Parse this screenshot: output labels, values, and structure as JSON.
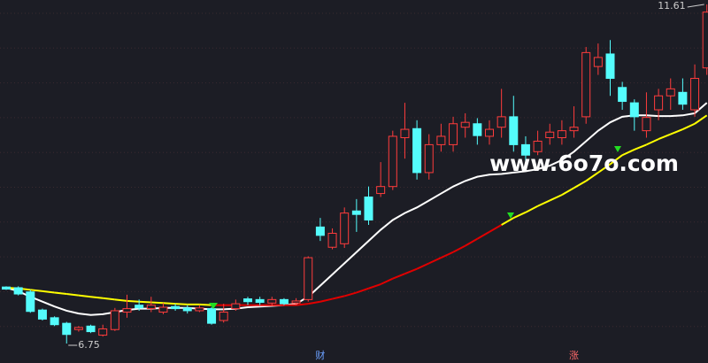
{
  "chart_data": {
    "type": "candlestick",
    "open": [
      7.56,
      7.55,
      7.49,
      7.23,
      7.12,
      7.04,
      6.95,
      7.0,
      6.87,
      6.95,
      7.2,
      7.3,
      7.25,
      7.2,
      7.28,
      7.26,
      7.22,
      7.25,
      7.08,
      7.25,
      7.39,
      7.38,
      7.33,
      7.38,
      7.33,
      7.38,
      8.42,
      8.13,
      8.18,
      8.65,
      8.85,
      8.9,
      9.0,
      9.7,
      9.83,
      9.2,
      9.6,
      9.6,
      9.85,
      9.9,
      9.72,
      9.85,
      10.0,
      9.6,
      9.5,
      9.7,
      9.7,
      9.8,
      10.0,
      10.72,
      10.9,
      10.42,
      10.2,
      9.8,
      10.1,
      10.3,
      10.35,
      10.1,
      10.7
    ],
    "high": [
      7.57,
      7.57,
      7.52,
      7.25,
      7.14,
      7.06,
      7.0,
      7.02,
      7.02,
      7.26,
      7.45,
      7.38,
      7.42,
      7.33,
      7.32,
      7.3,
      7.3,
      7.27,
      7.32,
      7.38,
      7.42,
      7.42,
      7.42,
      7.4,
      7.4,
      8.0,
      8.55,
      8.4,
      8.7,
      8.82,
      9.0,
      9.35,
      9.8,
      10.2,
      9.95,
      9.75,
      9.9,
      10.0,
      10.05,
      9.98,
      9.95,
      10.4,
      10.3,
      9.72,
      9.8,
      9.9,
      9.95,
      10.15,
      11.0,
      11.05,
      11.1,
      10.5,
      10.25,
      10.35,
      10.4,
      10.55,
      10.55,
      10.75,
      11.61
    ],
    "low": [
      7.52,
      7.44,
      7.19,
      7.08,
      7.0,
      6.75,
      6.92,
      6.9,
      6.85,
      6.93,
      7.12,
      7.22,
      7.2,
      7.17,
      7.22,
      7.18,
      7.2,
      7.02,
      7.05,
      7.22,
      7.3,
      7.3,
      7.3,
      7.3,
      7.3,
      7.35,
      8.22,
      8.1,
      8.12,
      8.35,
      8.45,
      8.85,
      8.95,
      9.4,
      9.1,
      9.1,
      9.5,
      9.5,
      9.7,
      9.6,
      9.6,
      9.7,
      9.5,
      9.35,
      9.45,
      9.6,
      9.6,
      9.7,
      9.9,
      10.6,
      10.3,
      10.1,
      9.8,
      9.7,
      9.95,
      10.1,
      10.1,
      10.0,
      10.6
    ],
    "close": [
      7.53,
      7.46,
      7.21,
      7.1,
      7.02,
      6.88,
      6.98,
      6.92,
      6.96,
      7.22,
      7.25,
      7.26,
      7.3,
      7.27,
      7.25,
      7.22,
      7.26,
      7.04,
      7.2,
      7.32,
      7.35,
      7.34,
      7.38,
      7.32,
      7.36,
      7.98,
      8.3,
      8.33,
      8.62,
      8.6,
      8.52,
      9.0,
      9.72,
      9.82,
      9.2,
      9.6,
      9.72,
      9.9,
      9.92,
      9.73,
      9.82,
      10.0,
      9.6,
      9.45,
      9.65,
      9.78,
      9.8,
      9.85,
      10.92,
      10.85,
      10.55,
      10.22,
      10.0,
      9.99,
      10.3,
      10.4,
      10.18,
      10.55,
      11.5
    ],
    "up_color": "#ff3c3c",
    "down_color": "#54fcfc",
    "ma_lines": [
      {
        "color": "#ffffff",
        "values": [
          7.55,
          7.5,
          7.42,
          7.35,
          7.28,
          7.22,
          7.18,
          7.16,
          7.17,
          7.2,
          7.23,
          7.25,
          7.25,
          7.26,
          7.26,
          7.26,
          7.25,
          7.24,
          7.24,
          7.25,
          7.27,
          7.28,
          7.29,
          7.3,
          7.32,
          7.42,
          7.58,
          7.74,
          7.9,
          8.06,
          8.22,
          8.38,
          8.52,
          8.62,
          8.7,
          8.8,
          8.9,
          9.0,
          9.08,
          9.14,
          9.17,
          9.18,
          9.2,
          9.22,
          9.25,
          9.3,
          9.38,
          9.5,
          9.65,
          9.8,
          9.92,
          10.0,
          10.02,
          10.02,
          10.01,
          10.01,
          10.02,
          10.05,
          10.2
        ]
      },
      {
        "colors": [
          "#ffff00",
          "#ffff00",
          "#ffff00",
          "#ffff00",
          "#ffff00",
          "#ffff00",
          "#ffff00",
          "#ffff00",
          "#ffff00",
          "#ffff00",
          "#ffff00",
          "#ffff00",
          "#ffff00",
          "#ffff00",
          "#ffff00",
          "#ffff00",
          "#ffff00",
          "#ffff00",
          "#e00000",
          "#e00000",
          "#e00000",
          "#e00000",
          "#e00000",
          "#e00000",
          "#e00000",
          "#e00000",
          "#e00000",
          "#e00000",
          "#e00000",
          "#e00000",
          "#e00000",
          "#e00000",
          "#e00000",
          "#e00000",
          "#e00000",
          "#e00000",
          "#e00000",
          "#e00000",
          "#e00000",
          "#e00000",
          "#e00000",
          "#e00000",
          "#ffff00",
          "#ffff00",
          "#ffff00",
          "#ffff00",
          "#ffff00",
          "#ffff00",
          "#ffff00",
          "#ffff00",
          "#ffff00",
          "#ffff00",
          "#ffff00",
          "#ffff00",
          "#ffff00",
          "#ffff00",
          "#ffff00",
          "#ffff00",
          "#ffff00"
        ],
        "values": [
          7.55,
          7.54,
          7.52,
          7.5,
          7.48,
          7.46,
          7.44,
          7.42,
          7.4,
          7.38,
          7.36,
          7.35,
          7.34,
          7.33,
          7.32,
          7.31,
          7.31,
          7.3,
          7.3,
          7.3,
          7.3,
          7.3,
          7.3,
          7.3,
          7.3,
          7.32,
          7.35,
          7.39,
          7.43,
          7.48,
          7.54,
          7.6,
          7.68,
          7.75,
          7.82,
          7.9,
          7.98,
          8.06,
          8.15,
          8.25,
          8.35,
          8.45,
          8.55,
          8.63,
          8.72,
          8.8,
          8.88,
          8.98,
          9.08,
          9.2,
          9.32,
          9.45,
          9.53,
          9.6,
          9.68,
          9.75,
          9.82,
          9.9,
          10.02
        ]
      }
    ],
    "high_label": 11.61,
    "low_label": 6.75,
    "markers": [
      {
        "x": 26,
        "label": "财"
      },
      {
        "x": 47,
        "label": "涨"
      }
    ],
    "watermark": "www.6o7o.com"
  }
}
